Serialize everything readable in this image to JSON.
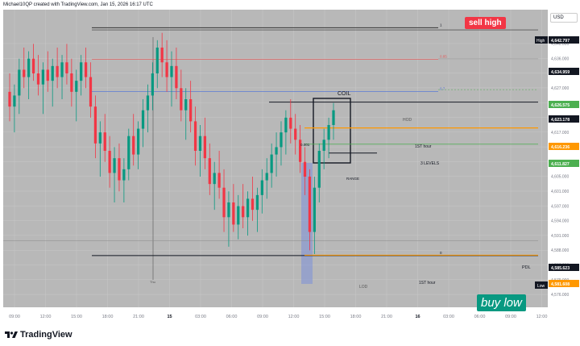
{
  "header": {
    "watermark": "Michael10QP created with TradingView.com, Jan 15, 2026 16:17 UTC"
  },
  "currency_button": "USD",
  "badges": {
    "sell": "sell high",
    "buy": "buy low"
  },
  "branding": {
    "name": "TradingView"
  },
  "colors": {
    "up_candle": "#089981",
    "down_candle": "#f23645",
    "plot_bg": "#b8b8b8",
    "orange": "#ff9800",
    "green_level": "#4caf50",
    "blue_level": "#5b7bd5",
    "highlight": "#7b8fd8"
  },
  "chart_data": {
    "type": "candlestick",
    "symbol_note": "",
    "y_range": [
      4575,
      4645
    ],
    "time_ticks": [
      "09:00",
      "12:00",
      "15:00",
      "18:00",
      "21:00",
      "15",
      "03:00",
      "06:00",
      "09:00",
      "12:00",
      "15:00",
      "18:00",
      "21:00",
      "16",
      "03:00",
      "06:00",
      "09:00",
      "12:00"
    ],
    "price_ticks": [
      "4,640.000",
      "4,636.000",
      "4,631.000",
      "4,627.000",
      "4,625.000",
      "4,621.000",
      "4,617.000",
      "4,613.000",
      "4,609.000",
      "4,605.000",
      "4,601.000",
      "4,597.000",
      "4,594.000",
      "4,591.000",
      "4,588.000",
      "4,582.000",
      "4,579.000",
      "4,576.000"
    ],
    "price_labels": [
      {
        "text": "High",
        "value": "4,642.797"
      },
      {
        "text": "",
        "value": "4,634.959"
      },
      {
        "text": "",
        "value": "4,626.575"
      },
      {
        "text": "",
        "value": "4,623.178"
      },
      {
        "text": "",
        "value": "4,616.236"
      },
      {
        "text": "",
        "value": "4,611.827"
      },
      {
        "text": "",
        "value": "4,585.623"
      },
      {
        "text": "",
        "value": "4,581.608"
      },
      {
        "text": "Low",
        "value": "4,580.000"
      }
    ],
    "fib_levels": [
      {
        "label": "1",
        "price": 4643.4
      },
      {
        "label": "0.85",
        "price": 4634.8
      },
      {
        "label": "0.7",
        "price": 4626.1
      },
      {
        "label": "0",
        "price": 4581.6
      }
    ],
    "level_labels": {
      "hod": "HOD",
      "first_hour_top": "1ST hour",
      "three_levels": "3 LEVELS",
      "range": "RANGE",
      "pdl": "PDL",
      "first_hour_bottom": "1ST hour",
      "lod": "LOD",
      "coil": "COIL",
      "thu": "Thu",
      "fib_value": "0.001"
    },
    "candles": [
      [
        4626,
        4631,
        4618,
        4622
      ],
      [
        4622,
        4628,
        4615,
        4625
      ],
      [
        4625,
        4635,
        4620,
        4632
      ],
      [
        4632,
        4638,
        4627,
        4630
      ],
      [
        4630,
        4637,
        4624,
        4635
      ],
      [
        4635,
        4639,
        4629,
        4631
      ],
      [
        4631,
        4636,
        4625,
        4628
      ],
      [
        4628,
        4634,
        4620,
        4632
      ],
      [
        4632,
        4637,
        4626,
        4629
      ],
      [
        4629,
        4635,
        4622,
        4633
      ],
      [
        4633,
        4638,
        4627,
        4630
      ],
      [
        4630,
        4636,
        4624,
        4634
      ],
      [
        4634,
        4639,
        4628,
        4631
      ],
      [
        4631,
        4635,
        4622,
        4626
      ],
      [
        4626,
        4632,
        4618,
        4629
      ],
      [
        4629,
        4636,
        4625,
        4634
      ],
      [
        4634,
        4638,
        4627,
        4630
      ],
      [
        4630,
        4634,
        4619,
        4622
      ],
      [
        4622,
        4625,
        4608,
        4612
      ],
      [
        4612,
        4618,
        4603,
        4615
      ],
      [
        4615,
        4620,
        4607,
        4610
      ],
      [
        4610,
        4614,
        4600,
        4604
      ],
      [
        4604,
        4611,
        4596,
        4608
      ],
      [
        4608,
        4612,
        4599,
        4602
      ],
      [
        4602,
        4608,
        4596,
        4605
      ],
      [
        4605,
        4616,
        4602,
        4614
      ],
      [
        4614,
        4620,
        4606,
        4609
      ],
      [
        4609,
        4618,
        4605,
        4616
      ],
      [
        4616,
        4624,
        4611,
        4621
      ],
      [
        4621,
        4628,
        4615,
        4625
      ],
      [
        4625,
        4634,
        4621,
        4631
      ],
      [
        4631,
        4640,
        4627,
        4638
      ],
      [
        4638,
        4642,
        4630,
        4634
      ],
      [
        4634,
        4640,
        4626,
        4630
      ],
      [
        4630,
        4637,
        4622,
        4633
      ],
      [
        4633,
        4638,
        4624,
        4627
      ],
      [
        4627,
        4632,
        4618,
        4621
      ],
      [
        4621,
        4627,
        4613,
        4624
      ],
      [
        4624,
        4629,
        4615,
        4618
      ],
      [
        4618,
        4622,
        4606,
        4610
      ],
      [
        4610,
        4617,
        4603,
        4614
      ],
      [
        4614,
        4619,
        4605,
        4608
      ],
      [
        4608,
        4612,
        4598,
        4601
      ],
      [
        4601,
        4607,
        4594,
        4604
      ],
      [
        4604,
        4610,
        4597,
        4600
      ],
      [
        4600,
        4605,
        4588,
        4592
      ],
      [
        4592,
        4599,
        4584,
        4596
      ],
      [
        4596,
        4601,
        4588,
        4590
      ],
      [
        4590,
        4598,
        4586,
        4595
      ],
      [
        4595,
        4601,
        4589,
        4592
      ],
      [
        4592,
        4599,
        4587,
        4597
      ],
      [
        4597,
        4603,
        4591,
        4594
      ],
      [
        4594,
        4600,
        4588,
        4598
      ],
      [
        4598,
        4605,
        4593,
        4602
      ],
      [
        4602,
        4608,
        4597,
        4604
      ],
      [
        4604,
        4612,
        4600,
        4609
      ],
      [
        4609,
        4615,
        4603,
        4611
      ],
      [
        4611,
        4618,
        4606,
        4615
      ],
      [
        4615,
        4621,
        4609,
        4619
      ],
      [
        4619,
        4624,
        4612,
        4616
      ],
      [
        4616,
        4620,
        4609,
        4613
      ],
      [
        4613,
        4617,
        4604,
        4607
      ],
      [
        4607,
        4611,
        4598,
        4603
      ],
      [
        4603,
        4605,
        4583,
        4588
      ],
      [
        4588,
        4603,
        4582,
        4600
      ],
      [
        4600,
        4612,
        4596,
        4610
      ],
      [
        4610,
        4616,
        4605,
        4613
      ],
      [
        4613,
        4619,
        4608,
        4617
      ],
      [
        4617,
        4623,
        4613,
        4621
      ]
    ]
  }
}
